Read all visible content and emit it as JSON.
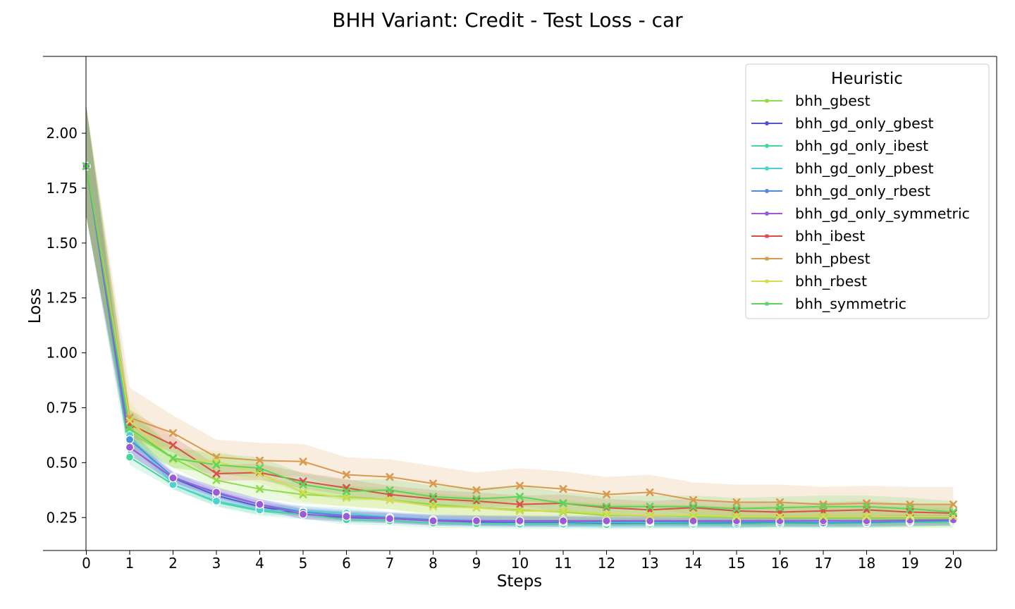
{
  "chart_data": {
    "type": "line",
    "title": "BHH Variant: Credit - Test Loss - car",
    "xlabel": "Steps",
    "ylabel": "Loss",
    "xlim": [
      -1,
      21
    ],
    "ylim": [
      0.1,
      2.35
    ],
    "x": [
      0,
      1,
      2,
      3,
      4,
      5,
      6,
      7,
      8,
      9,
      10,
      11,
      12,
      13,
      14,
      15,
      16,
      17,
      18,
      19,
      20
    ],
    "y_ticks": [
      0.25,
      0.5,
      0.75,
      1.0,
      1.25,
      1.5,
      1.75,
      2.0
    ],
    "y_tick_labels": [
      "0.25",
      "0.50",
      "0.75",
      "1.00",
      "1.25",
      "1.50",
      "1.75",
      "2.00"
    ],
    "x_tick_labels": [
      "0",
      "1",
      "2",
      "3",
      "4",
      "5",
      "6",
      "7",
      "8",
      "9",
      "10",
      "11",
      "12",
      "13",
      "14",
      "15",
      "16",
      "17",
      "18",
      "19",
      "20"
    ],
    "grid": false,
    "legend": {
      "title": "Heuristic",
      "placement": "top-right"
    },
    "series": [
      {
        "name": "bhh_gbest",
        "color": "#8fdb4a",
        "marker": "x",
        "values": [
          1.85,
          0.64,
          0.52,
          0.42,
          0.38,
          0.355,
          0.345,
          0.33,
          0.31,
          0.295,
          0.285,
          0.275,
          0.26,
          0.26,
          0.255,
          0.25,
          0.25,
          0.25,
          0.245,
          0.245,
          0.245
        ],
        "band": 0.05
      },
      {
        "name": "bhh_gd_only_gbest",
        "color": "#5555d0",
        "marker": "o",
        "values": [
          1.85,
          0.57,
          0.43,
          0.35,
          0.3,
          0.265,
          0.25,
          0.245,
          0.235,
          0.23,
          0.228,
          0.228,
          0.225,
          0.225,
          0.225,
          0.225,
          0.23,
          0.23,
          0.23,
          0.232,
          0.235
        ],
        "band": 0.025
      },
      {
        "name": "bhh_gd_only_ibest",
        "color": "#47d69b",
        "marker": "o",
        "values": [
          1.85,
          0.525,
          0.4,
          0.32,
          0.28,
          0.265,
          0.24,
          0.235,
          0.225,
          0.222,
          0.22,
          0.22,
          0.218,
          0.22,
          0.22,
          0.22,
          0.222,
          0.222,
          0.225,
          0.228,
          0.23
        ],
        "band": 0.025
      },
      {
        "name": "bhh_gd_only_pbest",
        "color": "#4fd1d0",
        "marker": "o",
        "values": [
          1.85,
          0.625,
          0.4,
          0.325,
          0.285,
          0.28,
          0.27,
          0.25,
          0.24,
          0.235,
          0.235,
          0.23,
          0.228,
          0.228,
          0.228,
          0.228,
          0.23,
          0.23,
          0.232,
          0.235,
          0.235
        ],
        "band": 0.025
      },
      {
        "name": "bhh_gd_only_rbest",
        "color": "#4c8ed8",
        "marker": "o",
        "values": [
          1.85,
          0.605,
          0.435,
          0.36,
          0.31,
          0.275,
          0.26,
          0.25,
          0.24,
          0.235,
          0.23,
          0.23,
          0.232,
          0.232,
          0.23,
          0.228,
          0.228,
          0.226,
          0.228,
          0.232,
          0.235
        ],
        "band": 0.025
      },
      {
        "name": "bhh_gd_only_symmetric",
        "color": "#9d5ad6",
        "marker": "o",
        "values": [
          1.85,
          0.57,
          0.43,
          0.365,
          0.31,
          0.265,
          0.255,
          0.245,
          0.235,
          0.235,
          0.235,
          0.235,
          0.235,
          0.235,
          0.235,
          0.235,
          0.235,
          0.235,
          0.235,
          0.238,
          0.24
        ],
        "band": 0.025
      },
      {
        "name": "bhh_ibest",
        "color": "#d9504a",
        "marker": "x",
        "values": [
          1.85,
          0.675,
          0.58,
          0.45,
          0.455,
          0.415,
          0.385,
          0.355,
          0.335,
          0.325,
          0.31,
          0.315,
          0.295,
          0.285,
          0.295,
          0.28,
          0.275,
          0.28,
          0.285,
          0.275,
          0.27
        ],
        "band": 0.04
      },
      {
        "name": "bhh_pbest",
        "color": "#d99a4e",
        "marker": "x",
        "values": [
          1.85,
          0.705,
          0.635,
          0.525,
          0.51,
          0.505,
          0.445,
          0.435,
          0.405,
          0.375,
          0.395,
          0.38,
          0.355,
          0.365,
          0.33,
          0.32,
          0.32,
          0.31,
          0.315,
          0.31,
          0.31
        ],
        "band": 0.08
      },
      {
        "name": "bhh_rbest",
        "color": "#d4dd52",
        "marker": "x",
        "values": [
          1.85,
          0.69,
          0.515,
          0.505,
          0.45,
          0.365,
          0.34,
          0.33,
          0.3,
          0.295,
          0.28,
          0.28,
          0.265,
          0.26,
          0.26,
          0.255,
          0.255,
          0.255,
          0.255,
          0.255,
          0.255
        ],
        "band": 0.05
      },
      {
        "name": "bhh_symmetric",
        "color": "#5bd65b",
        "marker": "x",
        "values": [
          1.85,
          0.655,
          0.52,
          0.49,
          0.475,
          0.4,
          0.37,
          0.375,
          0.345,
          0.335,
          0.345,
          0.315,
          0.3,
          0.3,
          0.3,
          0.29,
          0.295,
          0.3,
          0.3,
          0.29,
          0.275
        ],
        "band": 0.05
      }
    ]
  }
}
